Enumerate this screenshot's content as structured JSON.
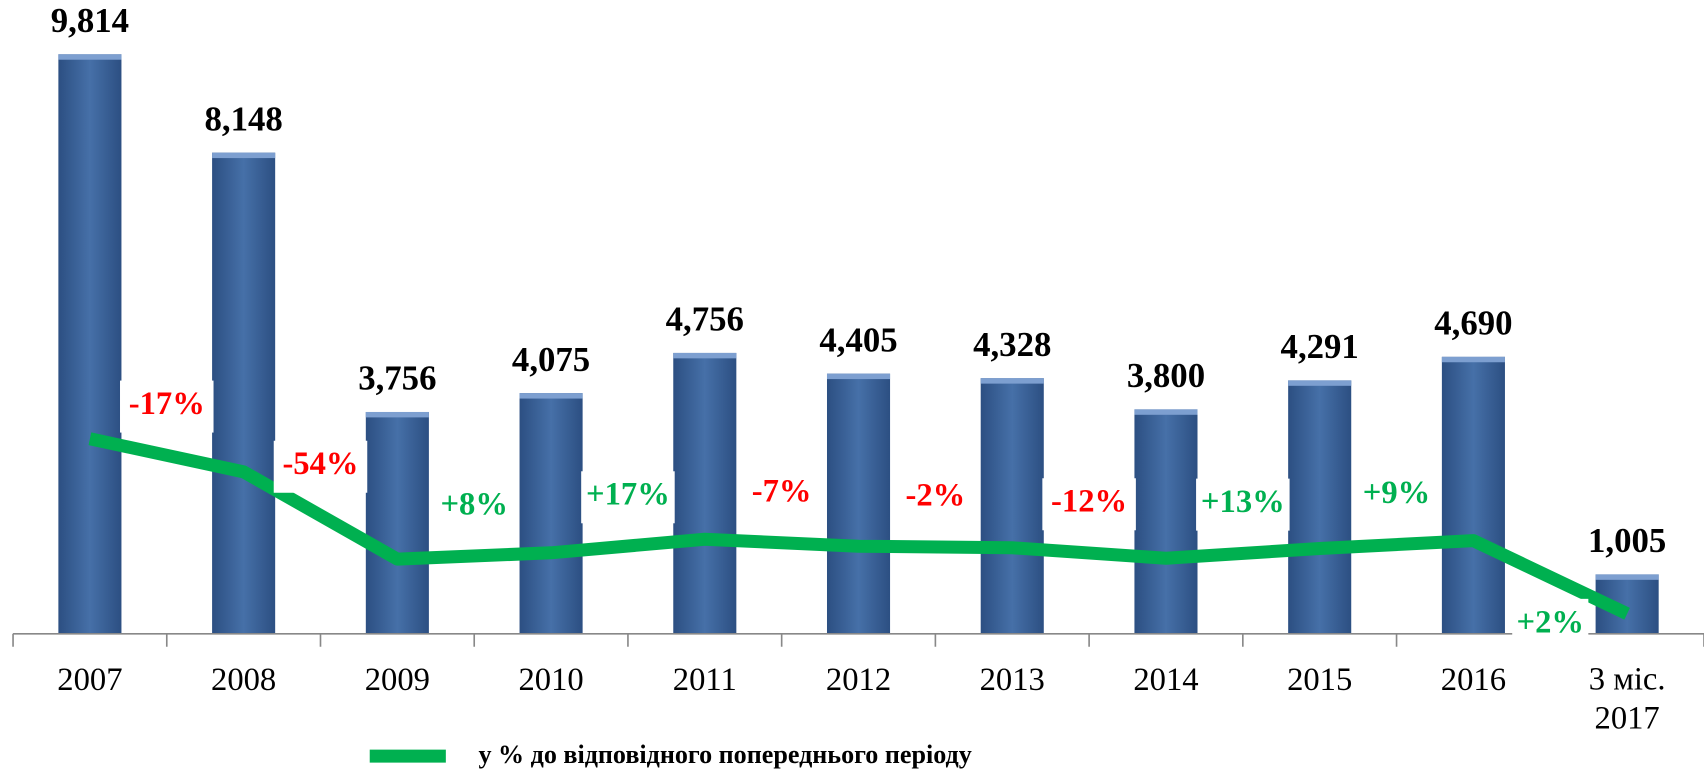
{
  "chart_data": {
    "type": "bar",
    "categories": [
      "2007",
      "2008",
      "2009",
      "2010",
      "2011",
      "2012",
      "2013",
      "2014",
      "2015",
      "2016",
      "3 міс. 2017"
    ],
    "values": [
      9814,
      8148,
      3756,
      4075,
      4756,
      4405,
      4328,
      3800,
      4291,
      4690,
      1005
    ],
    "value_labels": [
      "9,814",
      "8,148",
      "3,756",
      "4,075",
      "4,756",
      "4,405",
      "4,328",
      "3,800",
      "4,291",
      "4,690",
      "1,005"
    ],
    "color": "#3a5f94",
    "ylim": [
      0,
      10330
    ],
    "series": [
      {
        "name": "у % до відповідного попереднього періоду",
        "color": "#00b050",
        "axis": "y2",
        "values": [
          9814,
          8148,
          3756,
          4075,
          4756,
          4405,
          4328,
          3800,
          4291,
          4690,
          1005
        ]
      }
    ],
    "y2lim": [
      0,
      30700
    ],
    "change_labels": [
      "-17%",
      "-54%",
      "+8%",
      "+17%",
      "-7%",
      "-2%",
      "-12%",
      "+13%",
      "+9%",
      "+2%"
    ],
    "positive_color": "#00b050",
    "negative_color": "#ff0000"
  }
}
